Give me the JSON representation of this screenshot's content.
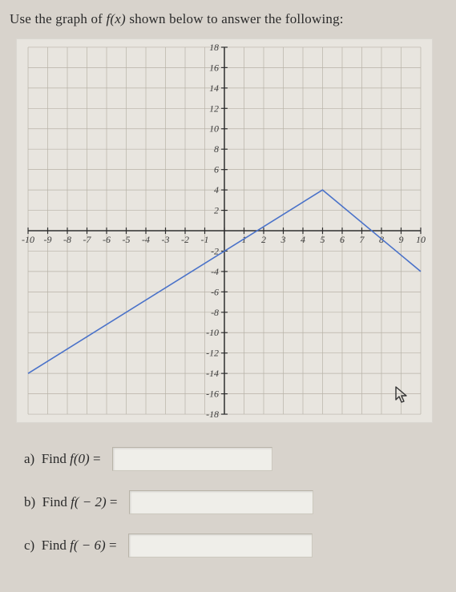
{
  "prompt": {
    "pre": "Use the graph of ",
    "fx": "f(x)",
    "post": " shown below to answer the following:"
  },
  "chart": {
    "type": "line",
    "xlim": [
      -10,
      10
    ],
    "ylim": [
      -18,
      18
    ],
    "xtick_step": 1,
    "ytick_step": 2,
    "x_tick_labels": [
      "-10",
      "-9",
      "-8",
      "-7",
      "-6",
      "-5",
      "-4",
      "-3",
      "-2",
      "-1",
      "",
      "1",
      "2",
      "3",
      "4",
      "5",
      "6",
      "7",
      "8",
      "9",
      "10"
    ],
    "y_tick_labels_pos": [
      "2",
      "4",
      "6",
      "8",
      "10",
      "12",
      "14",
      "16",
      "18"
    ],
    "y_tick_labels_neg": [
      "-2",
      "-4",
      "-6",
      "-8",
      "-10",
      "-12",
      "-14",
      "-16",
      "-18"
    ],
    "grid_color": "#b7b2a7",
    "axis_color": "#2e2e2e",
    "tick_label_color": "#3a3a3a",
    "tick_label_fontsize": 12,
    "background_color": "#e8e5df",
    "line_color": "#4a72c9",
    "line_width": 1.6,
    "series": [
      {
        "points": [
          [
            -10,
            -14
          ],
          [
            5,
            4
          ],
          [
            10,
            -4
          ]
        ]
      }
    ]
  },
  "questions": {
    "a": {
      "letter": "a)",
      "label_pre": "Find ",
      "fn": "f(0)",
      "eq": " = "
    },
    "b": {
      "letter": "b)",
      "label_pre": "Find ",
      "fn": "f( − 2)",
      "eq": " = "
    },
    "c": {
      "letter": "c)",
      "label_pre": "Find ",
      "fn": "f( − 6)",
      "eq": " = "
    }
  }
}
